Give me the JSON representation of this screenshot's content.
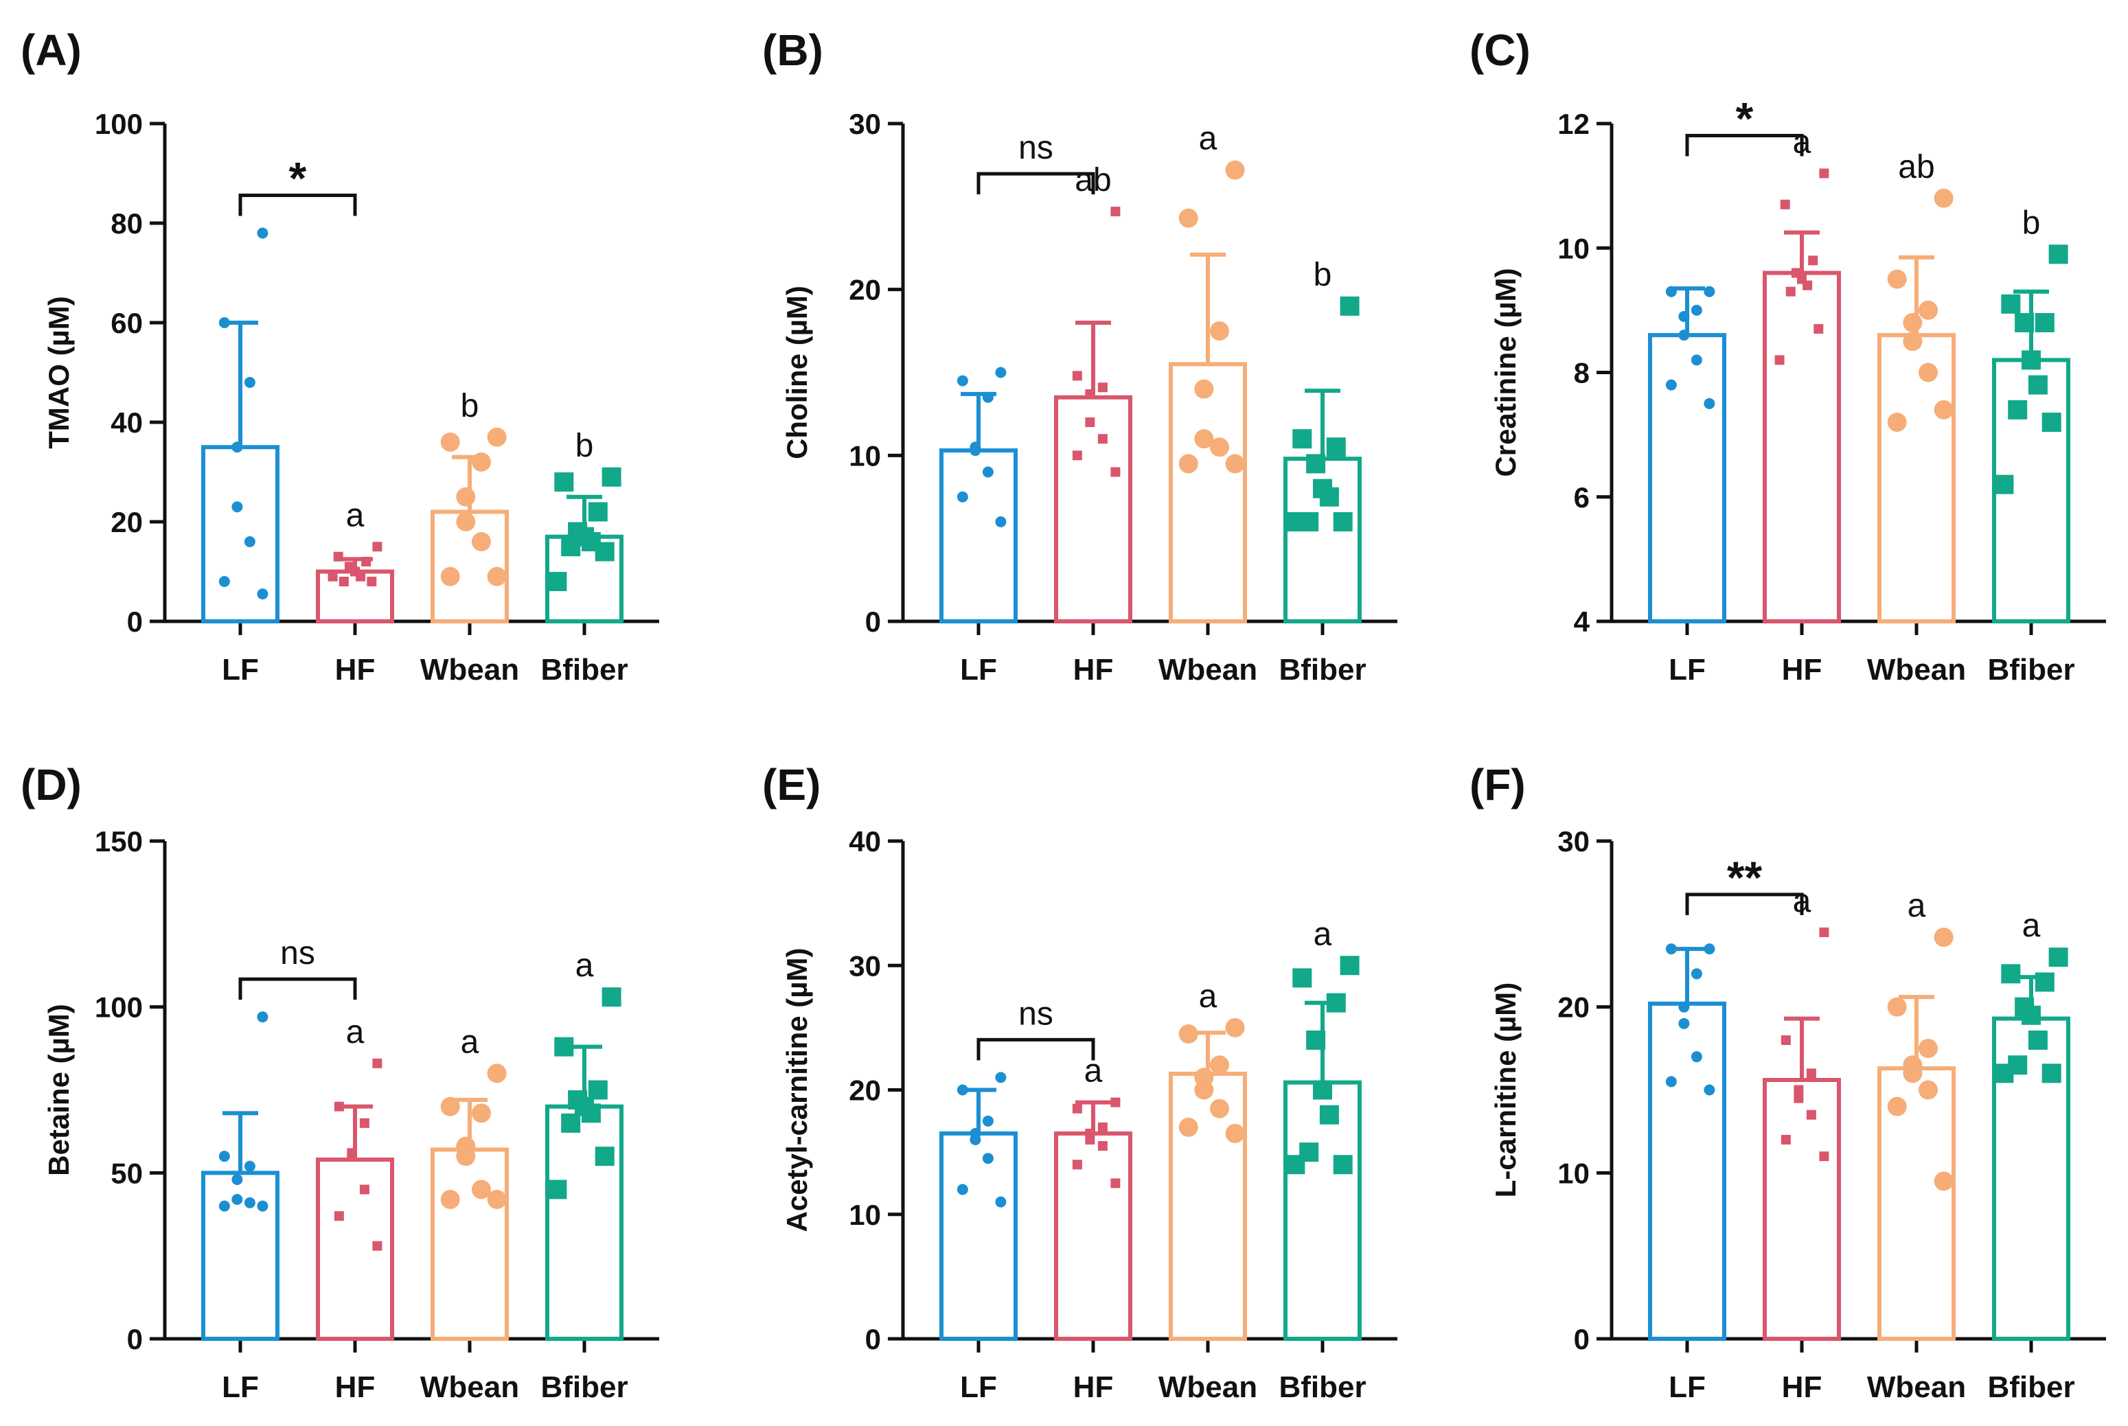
{
  "colors": {
    "LF": "#1b8fd2",
    "HF": "#d9566d",
    "Wbean": "#f6ad77",
    "Bfiber": "#12a88a",
    "axis": "#111111"
  },
  "chart_data": [
    {
      "type": "bar",
      "panel": "(A)",
      "ylabel": "TMAO (µM)",
      "categories": [
        "LF",
        "HF",
        "Wbean",
        "Bfiber"
      ],
      "ylim": [
        0,
        100
      ],
      "yticks": [
        "0",
        "20",
        "40",
        "60",
        "80",
        "100"
      ],
      "values": [
        35,
        10,
        22,
        17
      ],
      "errors": [
        60,
        12.5,
        33,
        25
      ],
      "points": [
        [
          78,
          60,
          48,
          35,
          23,
          16,
          8,
          5.5
        ],
        [
          15,
          13,
          12,
          11,
          10,
          9,
          8,
          8,
          9
        ],
        [
          37,
          36,
          32,
          25,
          20,
          16,
          9,
          9
        ],
        [
          29,
          28,
          22,
          18,
          17,
          16,
          15,
          14,
          8
        ]
      ],
      "bracket": {
        "label": "*",
        "from": "LF",
        "to": "HF"
      },
      "letters": [
        "",
        "a",
        "b",
        "b"
      ]
    },
    {
      "type": "bar",
      "panel": "(B)",
      "ylabel": "Choline (µM)",
      "categories": [
        "LF",
        "HF",
        "Wbean",
        "Bfiber"
      ],
      "ylim": [
        0,
        30
      ],
      "yticks": [
        "0",
        "10",
        "20",
        "30"
      ],
      "values": [
        10.3,
        13.5,
        15.5,
        9.8
      ],
      "errors": [
        13.7,
        18,
        22.1,
        13.9
      ],
      "points": [
        [
          15,
          14.5,
          13.5,
          10.5,
          10.3,
          9,
          7.5,
          6
        ],
        [
          24.7,
          14.8,
          14.1,
          13.7,
          12,
          11,
          10,
          9
        ],
        [
          27.2,
          24.3,
          17.5,
          14,
          11,
          10.5,
          9.5,
          9.5
        ],
        [
          19,
          11,
          10.5,
          9.5,
          8,
          7.5,
          6,
          6,
          6
        ]
      ],
      "bracket": {
        "label": "ns",
        "from": "LF",
        "to": "HF"
      },
      "letters": [
        "",
        "ab",
        "a",
        "b"
      ]
    },
    {
      "type": "bar",
      "panel": "(C)",
      "ylabel": "Creatinine (µM)",
      "categories": [
        "LF",
        "HF",
        "Wbean",
        "Bfiber"
      ],
      "ylim": [
        4,
        12
      ],
      "yticks": [
        "4",
        "6",
        "8",
        "10",
        "12"
      ],
      "values": [
        8.6,
        9.6,
        8.6,
        8.2
      ],
      "errors": [
        9.35,
        10.25,
        9.85,
        9.3
      ],
      "points": [
        [
          9.3,
          9.3,
          9.0,
          8.9,
          8.6,
          8.2,
          7.8,
          7.5
        ],
        [
          11.2,
          10.7,
          9.8,
          9.6,
          9.5,
          9.4,
          9.3,
          8.7,
          8.2
        ],
        [
          10.8,
          9.5,
          9.0,
          8.8,
          8.5,
          8.0,
          7.2,
          7.4
        ],
        [
          9.9,
          9.1,
          8.8,
          8.8,
          8.2,
          7.8,
          7.4,
          7.2,
          6.2
        ]
      ],
      "bracket": {
        "label": "*",
        "from": "LF",
        "to": "HF"
      },
      "letters": [
        "",
        "a",
        "ab",
        "b"
      ]
    },
    {
      "type": "bar",
      "panel": "(D)",
      "ylabel": "Betaine (µM)",
      "categories": [
        "LF",
        "HF",
        "Wbean",
        "Bfiber"
      ],
      "ylim": [
        0,
        150
      ],
      "yticks": [
        "0",
        "50",
        "100",
        "150"
      ],
      "values": [
        50,
        54,
        57,
        70
      ],
      "errors": [
        68,
        70,
        72,
        88
      ],
      "points": [
        [
          97,
          55,
          52,
          48,
          42,
          41,
          40,
          40
        ],
        [
          83,
          70,
          65,
          56,
          55,
          45,
          37,
          28
        ],
        [
          80,
          70,
          68,
          58,
          55,
          45,
          42,
          42
        ],
        [
          103,
          88,
          75,
          72,
          70,
          68,
          65,
          55,
          45
        ]
      ],
      "bracket": {
        "label": "ns",
        "from": "LF",
        "to": "HF"
      },
      "letters": [
        "",
        "a",
        "a",
        "a"
      ]
    },
    {
      "type": "bar",
      "panel": "(E)",
      "ylabel": "Acetyl-carnitine (µM)",
      "categories": [
        "LF",
        "HF",
        "Wbean",
        "Bfiber"
      ],
      "ylim": [
        0,
        40
      ],
      "yticks": [
        "0",
        "10",
        "20",
        "30",
        "40"
      ],
      "values": [
        16.5,
        16.5,
        21.3,
        20.6
      ],
      "errors": [
        20,
        19,
        24.6,
        27
      ],
      "points": [
        [
          21,
          20,
          17.5,
          16.5,
          16,
          14.5,
          12,
          11
        ],
        [
          19,
          18.5,
          17,
          16.5,
          16,
          15.5,
          14,
          12.5
        ],
        [
          25,
          24.5,
          22,
          21,
          20,
          18.5,
          17,
          16.5
        ],
        [
          30,
          29,
          27,
          24,
          20,
          18,
          15,
          14,
          14
        ]
      ],
      "bracket": {
        "label": "ns",
        "from": "LF",
        "to": "HF"
      },
      "letters": [
        "",
        "a",
        "a",
        "a"
      ]
    },
    {
      "type": "bar",
      "panel": "(F)",
      "ylabel": "L-carnitine (µM)",
      "categories": [
        "LF",
        "HF",
        "Wbean",
        "Bfiber"
      ],
      "ylim": [
        0,
        30
      ],
      "yticks": [
        "0",
        "10",
        "20",
        "30"
      ],
      "values": [
        20.2,
        15.6,
        16.3,
        19.3
      ],
      "errors": [
        23.5,
        19.3,
        20.6,
        21.8
      ],
      "points": [
        [
          23.5,
          23.5,
          22,
          20,
          19,
          17,
          15.5,
          15
        ],
        [
          24.5,
          18,
          16,
          15,
          14.5,
          13.5,
          12,
          11
        ],
        [
          24.2,
          20,
          17.5,
          16.5,
          16,
          15,
          14,
          9.5
        ],
        [
          23,
          22,
          21.5,
          20,
          19.5,
          18,
          16.5,
          16,
          16
        ]
      ],
      "bracket": {
        "label": "**",
        "from": "LF",
        "to": "HF"
      },
      "letters": [
        "",
        "a",
        "a",
        "a"
      ]
    }
  ]
}
